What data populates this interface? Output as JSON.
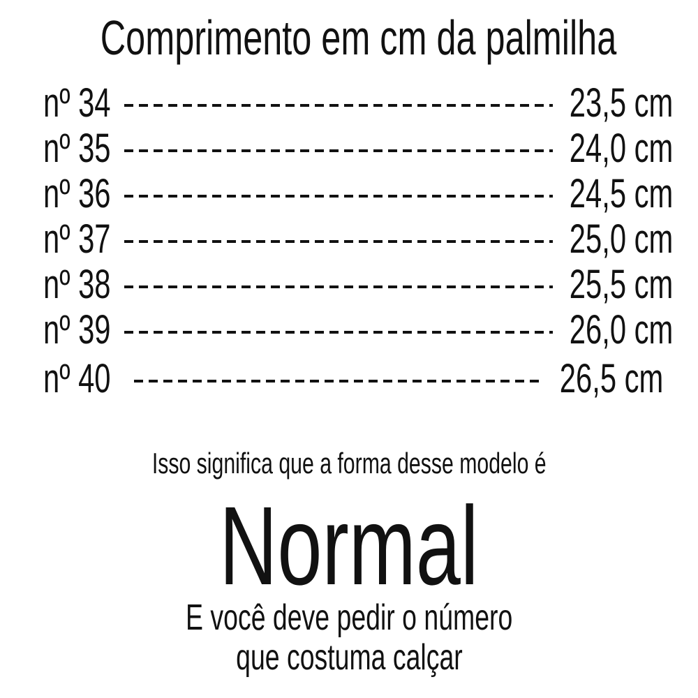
{
  "title": "Comprimento em cm da palmilha",
  "sizes": [
    {
      "label": "nº 34",
      "value": "23,5 cm"
    },
    {
      "label": "nº 35",
      "value": "24,0 cm"
    },
    {
      "label": "nº 36",
      "value": "24,5 cm"
    },
    {
      "label": "nº 37",
      "value": "25,0 cm"
    },
    {
      "label": "nº 38",
      "value": "25,5 cm"
    },
    {
      "label": "nº 39",
      "value": "26,0 cm"
    },
    {
      "label": "nº 40",
      "value": "26,5 cm"
    }
  ],
  "intro": "Isso significa que a forma desse modelo é",
  "fit": "Normal",
  "advice_line1": "E você deve pedir o número",
  "advice_line2": "que costuma calçar"
}
